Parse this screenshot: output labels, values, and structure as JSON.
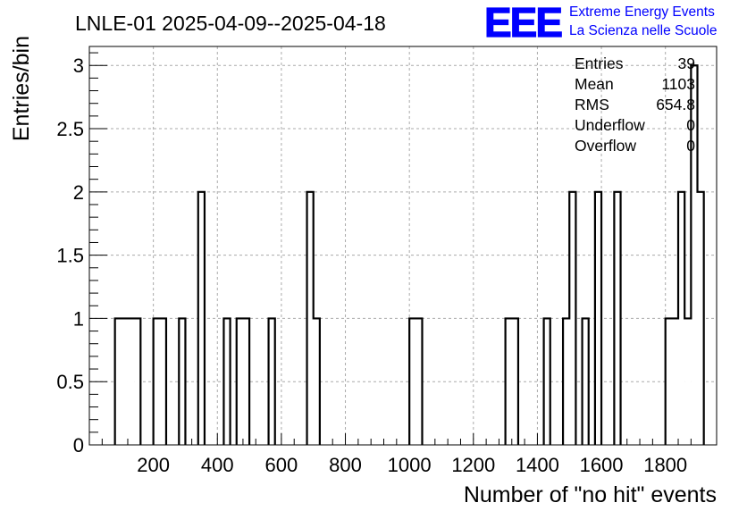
{
  "chart_data": {
    "type": "bar",
    "title": "LNLE-01 2025-04-09--2025-04-18",
    "xlabel": "Number of \"no hit\" events",
    "ylabel": "Entries/bin",
    "xlim": [
      0,
      1960
    ],
    "ylim": [
      0,
      3.15
    ],
    "x_ticks": [
      200,
      400,
      600,
      800,
      1000,
      1200,
      1400,
      1600,
      1800
    ],
    "y_ticks": [
      "0",
      "0.5",
      "1",
      "1.5",
      "2",
      "2.5",
      "3"
    ],
    "grid": true,
    "bin_width": 20,
    "bins": [
      {
        "x": 80,
        "count": 1
      },
      {
        "x": 100,
        "count": 1
      },
      {
        "x": 120,
        "count": 1
      },
      {
        "x": 140,
        "count": 1
      },
      {
        "x": 200,
        "count": 1
      },
      {
        "x": 220,
        "count": 1
      },
      {
        "x": 280,
        "count": 1
      },
      {
        "x": 340,
        "count": 2
      },
      {
        "x": 420,
        "count": 1
      },
      {
        "x": 460,
        "count": 1
      },
      {
        "x": 480,
        "count": 1
      },
      {
        "x": 560,
        "count": 1
      },
      {
        "x": 680,
        "count": 2
      },
      {
        "x": 700,
        "count": 1
      },
      {
        "x": 1000,
        "count": 1
      },
      {
        "x": 1020,
        "count": 1
      },
      {
        "x": 1300,
        "count": 1
      },
      {
        "x": 1320,
        "count": 1
      },
      {
        "x": 1420,
        "count": 1
      },
      {
        "x": 1480,
        "count": 1
      },
      {
        "x": 1500,
        "count": 2
      },
      {
        "x": 1540,
        "count": 1
      },
      {
        "x": 1580,
        "count": 2
      },
      {
        "x": 1640,
        "count": 2
      },
      {
        "x": 1800,
        "count": 1
      },
      {
        "x": 1820,
        "count": 1
      },
      {
        "x": 1840,
        "count": 2
      },
      {
        "x": 1860,
        "count": 1
      },
      {
        "x": 1880,
        "count": 3
      },
      {
        "x": 1900,
        "count": 2
      }
    ],
    "stats": [
      {
        "label": "Entries",
        "value": "39"
      },
      {
        "label": "Mean",
        "value": "1103"
      },
      {
        "label": "RMS",
        "value": "654.8"
      },
      {
        "label": "Underflow",
        "value": "0"
      },
      {
        "label": "Overflow",
        "value": "0"
      }
    ]
  },
  "logo": {
    "text": "EEE",
    "line1": "Extreme Energy Events",
    "line2": "La Scienza nelle Scuole",
    "color": "#0000ff"
  }
}
